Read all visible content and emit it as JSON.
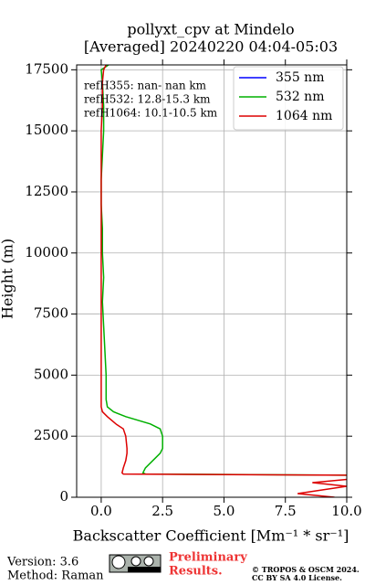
{
  "chart_data": {
    "type": "profile",
    "title": "pollyxt_cpv at Mindelo",
    "subtitle": "[Averaged] 20240220 04:04-05:03",
    "xlabel": "Backscatter Coefficient [Mm⁻¹ * sr⁻¹]",
    "ylabel": "Height (m)",
    "xlim": [
      -1,
      10
    ],
    "ylim": [
      0,
      17700
    ],
    "xticks": [
      {
        "value": 0,
        "label": "0.0"
      },
      2.5,
      {
        "value": 5,
        "label": "5.0"
      },
      7.5,
      {
        "value": 10,
        "label": "10.0"
      }
    ],
    "yticks": [
      0,
      2500,
      5000,
      7500,
      10000,
      12500,
      15000,
      17500
    ],
    "grid": true,
    "legend": "upper right",
    "annotations": [
      "refH355:  nan- nan km",
      "refH532: 12.8-15.3 km",
      "refH1064: 10.1-10.5 km"
    ],
    "y": [
      0,
      150,
      300,
      450,
      600,
      750,
      900,
      950,
      1000,
      1200,
      1500,
      1800,
      2000,
      2500,
      2800,
      3000,
      3300,
      3500,
      3700,
      4000,
      5000,
      6000,
      7000,
      8000,
      9000,
      10000,
      11000,
      12000,
      13000,
      14000,
      15000,
      16000,
      17000,
      17500,
      17700
    ],
    "series": [
      {
        "name": "355 nm",
        "color": "#0000ff",
        "values": [
          null,
          null,
          null,
          null,
          null,
          null,
          null,
          null,
          null,
          null,
          null,
          null,
          null,
          null,
          null,
          null,
          null,
          null,
          null,
          null,
          null,
          null,
          null,
          null,
          null,
          null,
          null,
          null,
          null,
          null,
          null,
          null,
          null,
          null,
          null
        ]
      },
      {
        "name": "532 nm",
        "color": "#00b000",
        "values": [
          null,
          null,
          null,
          null,
          null,
          null,
          10.5,
          1.8,
          1.7,
          1.8,
          2.1,
          2.4,
          2.5,
          2.5,
          2.4,
          2.0,
          1.0,
          0.5,
          0.25,
          0.2,
          0.2,
          0.15,
          0.1,
          0.05,
          0.1,
          0.05,
          0.05,
          0.0,
          0.0,
          0.05,
          0.1,
          0.1,
          0.05,
          0.0,
          0.3
        ]
      },
      {
        "name": "1064 nm",
        "color": "#dd0000",
        "values": [
          9.5,
          8.0,
          9.0,
          10.0,
          8.6,
          10.2,
          10.5,
          0.9,
          0.85,
          0.9,
          1.0,
          1.05,
          1.05,
          1.0,
          0.9,
          0.6,
          0.25,
          0.05,
          0.0,
          0.0,
          0.0,
          0.0,
          0.0,
          0.0,
          0.0,
          0.0,
          0.0,
          0.0,
          0.0,
          0.0,
          0.0,
          0.05,
          0.05,
          0.1,
          0.2
        ]
      }
    ]
  },
  "footer": {
    "version": "Version: 3.6",
    "method": "Method: Raman",
    "preliminary": [
      "Preliminary",
      "Results."
    ],
    "copyright": [
      "© TROPOS & OSCM 2024.",
      "CC BY SA 4.0 License."
    ]
  }
}
